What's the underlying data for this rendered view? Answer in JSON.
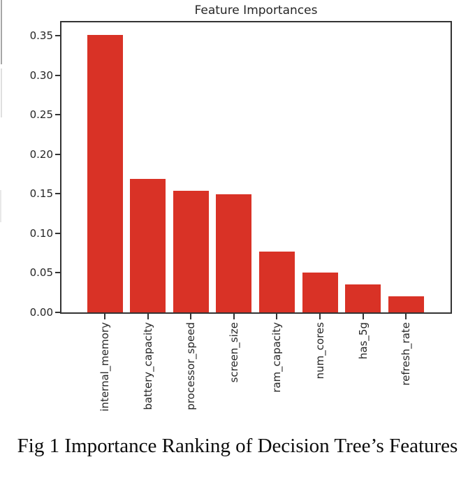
{
  "figure": {
    "caption": "Fig 1 Importance Ranking of Decision Tree’s Features"
  },
  "chart_data": {
    "type": "bar",
    "title": "Feature Importances",
    "categories": [
      "internal_memory",
      "battery_capacity",
      "processor_speed",
      "screen_size",
      "ram_capacity",
      "num_cores",
      "has_5g",
      "refresh_rate"
    ],
    "values": [
      0.351,
      0.169,
      0.154,
      0.149,
      0.077,
      0.05,
      0.035,
      0.02
    ],
    "xlabel": "",
    "ylabel": "",
    "ylim": [
      0,
      0.367
    ],
    "yticks": [
      0.0,
      0.05,
      0.1,
      0.15,
      0.2,
      0.25,
      0.3,
      0.35
    ],
    "ytick_labels": [
      "0.00",
      "0.05",
      "0.10",
      "0.15",
      "0.20",
      "0.25",
      "0.30",
      "0.35"
    ],
    "x_tick_rotation": 90,
    "grid": false,
    "legend": "none",
    "bar_color": "#d93226",
    "axis_color": "#333333",
    "text_color": "#262626"
  }
}
